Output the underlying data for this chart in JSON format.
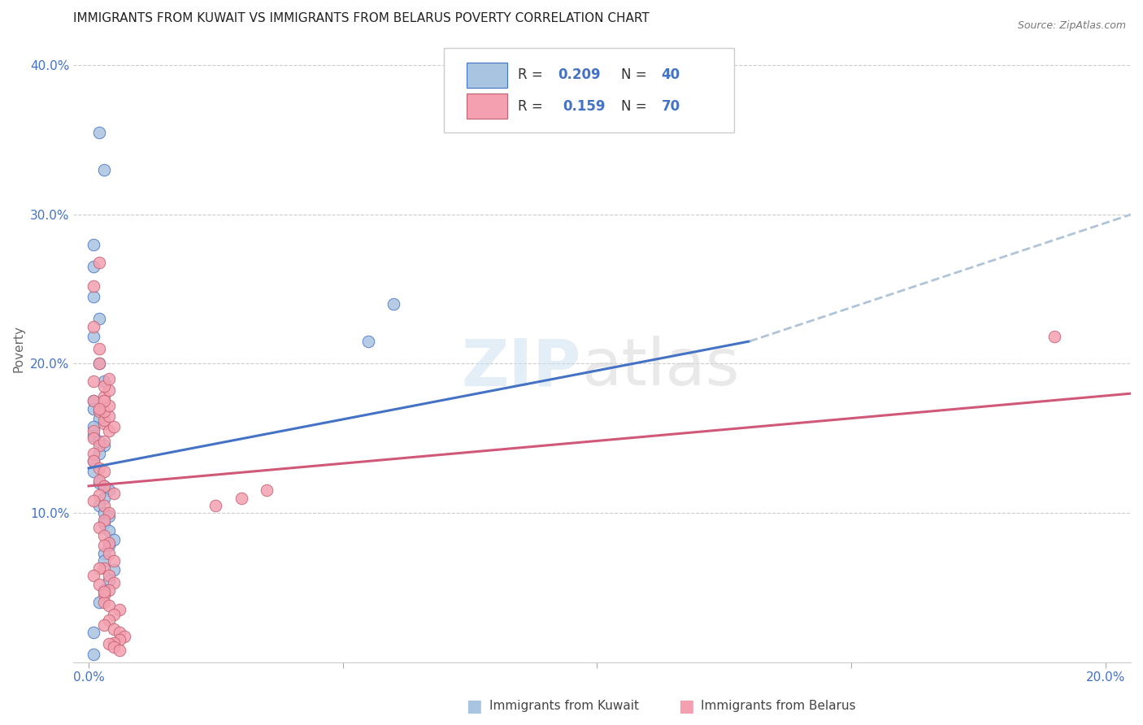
{
  "title": "IMMIGRANTS FROM KUWAIT VS IMMIGRANTS FROM BELARUS POVERTY CORRELATION CHART",
  "source": "Source: ZipAtlas.com",
  "ylabel": "Poverty",
  "x_min": 0.0,
  "x_max": 0.2,
  "y_min": 0.0,
  "y_max": 0.42,
  "color_kuwait": "#a8c4e0",
  "color_belarus": "#f4a0b0",
  "trend_color_kuwait": "#4472c4",
  "trend_color_belarus": "#d05878",
  "trend_ext_color": "#b0c4d8",
  "kuwait_x": [
    0.002,
    0.003,
    0.001,
    0.001,
    0.001,
    0.002,
    0.001,
    0.002,
    0.003,
    0.001,
    0.001,
    0.002,
    0.001,
    0.001,
    0.002,
    0.003,
    0.002,
    0.001,
    0.001,
    0.002,
    0.003,
    0.004,
    0.003,
    0.002,
    0.003,
    0.004,
    0.003,
    0.004,
    0.005,
    0.004,
    0.003,
    0.003,
    0.005,
    0.004,
    0.003,
    0.06,
    0.055,
    0.002,
    0.001,
    0.001
  ],
  "kuwait_y": [
    0.355,
    0.33,
    0.28,
    0.265,
    0.245,
    0.23,
    0.218,
    0.2,
    0.188,
    0.175,
    0.17,
    0.163,
    0.158,
    0.152,
    0.148,
    0.145,
    0.14,
    0.135,
    0.128,
    0.12,
    0.118,
    0.115,
    0.11,
    0.105,
    0.1,
    0.098,
    0.093,
    0.088,
    0.082,
    0.078,
    0.073,
    0.068,
    0.062,
    0.055,
    0.048,
    0.24,
    0.215,
    0.04,
    0.02,
    0.005
  ],
  "belarus_x": [
    0.002,
    0.001,
    0.001,
    0.002,
    0.002,
    0.001,
    0.001,
    0.002,
    0.003,
    0.001,
    0.001,
    0.002,
    0.001,
    0.001,
    0.002,
    0.003,
    0.002,
    0.003,
    0.002,
    0.001,
    0.003,
    0.004,
    0.003,
    0.002,
    0.003,
    0.004,
    0.003,
    0.004,
    0.005,
    0.003,
    0.004,
    0.005,
    0.004,
    0.003,
    0.003,
    0.004,
    0.006,
    0.005,
    0.004,
    0.003,
    0.005,
    0.006,
    0.007,
    0.006,
    0.005,
    0.004,
    0.005,
    0.006,
    0.004,
    0.003,
    0.003,
    0.004,
    0.005,
    0.003,
    0.004,
    0.035,
    0.03,
    0.025,
    0.005,
    0.19,
    0.003,
    0.004,
    0.003,
    0.004,
    0.003,
    0.002,
    0.002,
    0.001,
    0.002,
    0.003
  ],
  "belarus_y": [
    0.268,
    0.252,
    0.225,
    0.21,
    0.2,
    0.188,
    0.175,
    0.168,
    0.16,
    0.155,
    0.15,
    0.145,
    0.14,
    0.135,
    0.13,
    0.128,
    0.122,
    0.118,
    0.112,
    0.108,
    0.105,
    0.1,
    0.095,
    0.09,
    0.085,
    0.08,
    0.078,
    0.073,
    0.068,
    0.063,
    0.058,
    0.053,
    0.048,
    0.045,
    0.04,
    0.038,
    0.035,
    0.032,
    0.028,
    0.025,
    0.022,
    0.02,
    0.017,
    0.015,
    0.013,
    0.012,
    0.01,
    0.008,
    0.155,
    0.148,
    0.162,
    0.165,
    0.158,
    0.168,
    0.172,
    0.115,
    0.11,
    0.105,
    0.113,
    0.218,
    0.178,
    0.182,
    0.185,
    0.19,
    0.175,
    0.17,
    0.063,
    0.058,
    0.052,
    0.047
  ]
}
